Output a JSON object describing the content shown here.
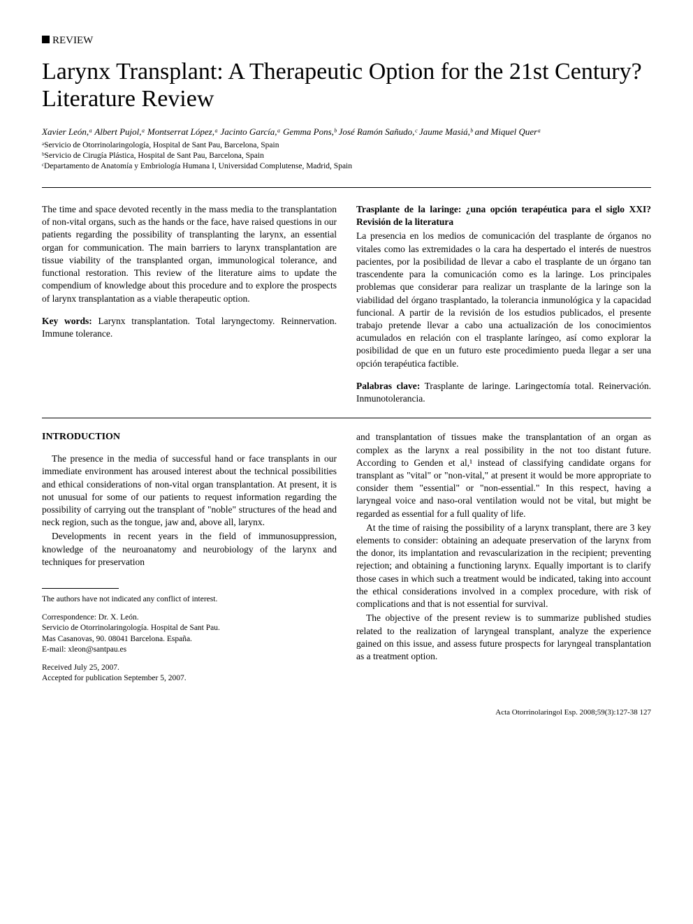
{
  "section_label": "REVIEW",
  "title": "Larynx Transplant: A Therapeutic Option for the 21st Century? Literature Review",
  "authors_html": "Xavier León,ᵃ Albert Pujol,ᵃ Montserrat López,ᵃ Jacinto García,ᵃ Gemma Pons,ᵇ José Ramón Sañudo,ᶜ Jaume Masiá,ᵇ and Miquel Querᵃ",
  "affiliations": [
    "ᵃServicio de Otorrinolaringología, Hospital de Sant Pau, Barcelona, Spain",
    "ᵇServicio de Cirugía Plástica, Hospital de Sant Pau, Barcelona, Spain",
    "ᶜDepartamento de Anatomía y Embriología Humana I, Universidad Complutense, Madrid, Spain"
  ],
  "abstract_en": "The time and space devoted recently in the mass media to the transplantation of non-vital organs, such as the hands or the face, have raised questions in our patients regarding the possibility of transplanting the larynx, an essential organ for communication. The main barriers to larynx transplantation are tissue viability of the transplanted organ, immunological tolerance, and functional restoration. This review of the literature aims to update the compendium of knowledge about this procedure and to explore the prospects of larynx transplantation as a viable therapeutic option.",
  "keywords_en_label": "Key words",
  "keywords_en": "Larynx transplantation. Total laryngectomy. Reinnervation. Immune tolerance.",
  "es_title": "Trasplante de la laringe: ¿una opción terapéutica para el siglo XXI? Revisión de la literatura",
  "abstract_es": "La presencia en los medios de comunicación del trasplante de órganos no vitales como las extremidades o la cara ha despertado el interés de nuestros pacientes, por la posibilidad de llevar a cabo el trasplante de un órgano tan trascendente para la comunicación como es la laringe. Los principales problemas que considerar para realizar un trasplante de la laringe son la viabilidad del órgano trasplantado, la tolerancia inmunológica y la capacidad funcional. A partir de la revisión de los estudios publicados, el presente trabajo pretende llevar a cabo una actualización de los conocimientos acumulados en relación con el trasplante laríngeo, así como explorar la posibilidad de que en un futuro este procedimiento pueda llegar a ser una opción terapéutica factible.",
  "keywords_es_label": "Palabras clave",
  "keywords_es": "Trasplante de laringe. Laringectomía total. Reinervación. Inmunotolerancia.",
  "intro_heading": "INTRODUCTION",
  "intro_p1": "The presence in the media of successful hand or face transplants in our immediate environment has aroused interest about the technical possibilities and ethical considerations of non-vital organ transplantation. At present, it is not unusual for some of our patients to request information regarding the possibility of carrying out the transplant of \"noble\" structures of the head and neck region, such as the tongue, jaw and, above all, larynx.",
  "intro_p2": "Developments in recent years in the field of immunosuppression, knowledge of the neuroanatomy and neurobiology of the larynx and techniques for preservation",
  "col2_p1": "and transplantation of tissues make the transplantation of an organ as complex as the larynx a real possibility in the not too distant future. According to Genden et al,¹ instead of classifying candidate organs for transplant as \"vital\" or \"non-vital,\" at present it would be more appropriate to consider them \"essential\" or \"non-essential.\" In this respect, having a laryngeal voice and naso-oral ventilation would not be vital, but might be regarded as essential for a full quality of life.",
  "col2_p2": "At the time of raising the possibility of a larynx transplant, there are 3 key elements to consider: obtaining an adequate preservation of the larynx from the donor, its implantation and revascularization in the recipient; preventing rejection; and obtaining a functioning larynx. Equally important is to clarify those cases in which such a treatment would be indicated, taking into account the ethical considerations involved in a complex procedure, with risk of complications and that is not essential for survival.",
  "col2_p3": "The objective of the present review is to summarize published studies related to the realization of laryngeal transplant, analyze the experience gained on this issue, and assess future prospects for laryngeal transplantation as a treatment option.",
  "footnote_conflict": "The authors have not indicated any conflict of interest.",
  "footnote_corr_label": "Correspondence: Dr. X. León.",
  "footnote_corr_addr1": "Servicio de Otorrinolaringología. Hospital de Sant Pau.",
  "footnote_corr_addr2": "Mas Casanovas, 90. 08041 Barcelona. España.",
  "footnote_corr_email": "E-mail: xleon@santpau.es",
  "footnote_received": "Received July 25, 2007.",
  "footnote_accepted": "Accepted for publication September 5, 2007.",
  "page_footer": "Acta Otorrinolaringol Esp. 2008;59(3):127-38   127"
}
